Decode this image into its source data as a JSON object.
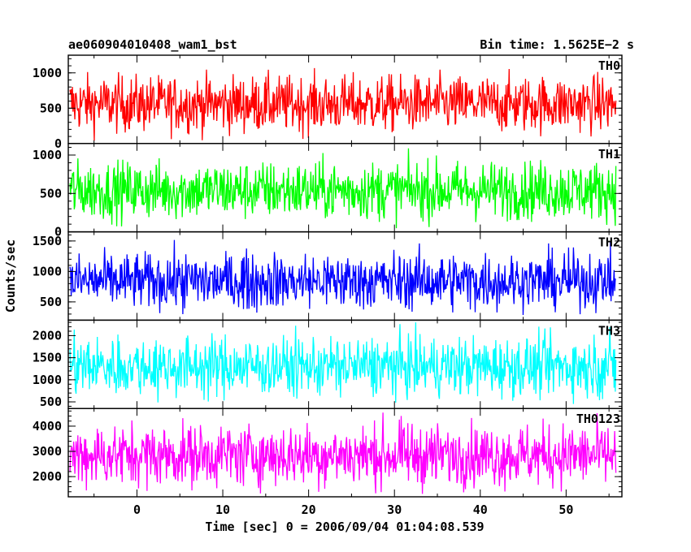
{
  "chart_data": {
    "type": "line",
    "title_left": "ae060904010408_wam1_bst",
    "title_right": "Bin time: 1.5625E−2 s",
    "xlabel": "Time [sec] 0 = 2006/09/04 01:04:08.539",
    "ylabel": "Counts/sec",
    "xlim": [
      -8,
      56.5
    ],
    "xticks": [
      0,
      10,
      20,
      30,
      40,
      50
    ],
    "x_data_range": [
      -7.8,
      55.8
    ],
    "grid": false,
    "panels": [
      {
        "name": "TH0",
        "color": "#ff0000",
        "ylim": [
          0,
          1250
        ],
        "yticks": [
          0,
          500,
          1000
        ],
        "mean": 560,
        "spread": 200,
        "floor": 20,
        "cap": 1250
      },
      {
        "name": "TH1",
        "color": "#00ff00",
        "ylim": [
          0,
          1150
        ],
        "yticks": [
          0,
          500,
          1000
        ],
        "mean": 540,
        "spread": 190,
        "floor": 30,
        "cap": 1150
      },
      {
        "name": "TH2",
        "color": "#0000ff",
        "ylim": [
          200,
          1650
        ],
        "yticks": [
          500,
          1000,
          1500
        ],
        "mean": 840,
        "spread": 230,
        "floor": 280,
        "cap": 1650
      },
      {
        "name": "TH3",
        "color": "#00ffff",
        "ylim": [
          350,
          2350
        ],
        "yticks": [
          500,
          1000,
          1500,
          2000
        ],
        "mean": 1300,
        "spread": 340,
        "floor": 420,
        "cap": 2350
      },
      {
        "name": "TH0123",
        "color": "#ff00ff",
        "ylim": [
          1200,
          4700
        ],
        "yticks": [
          2000,
          3000,
          4000
        ],
        "mean": 2850,
        "spread": 620,
        "floor": 1300,
        "cap": 4700
      }
    ]
  }
}
